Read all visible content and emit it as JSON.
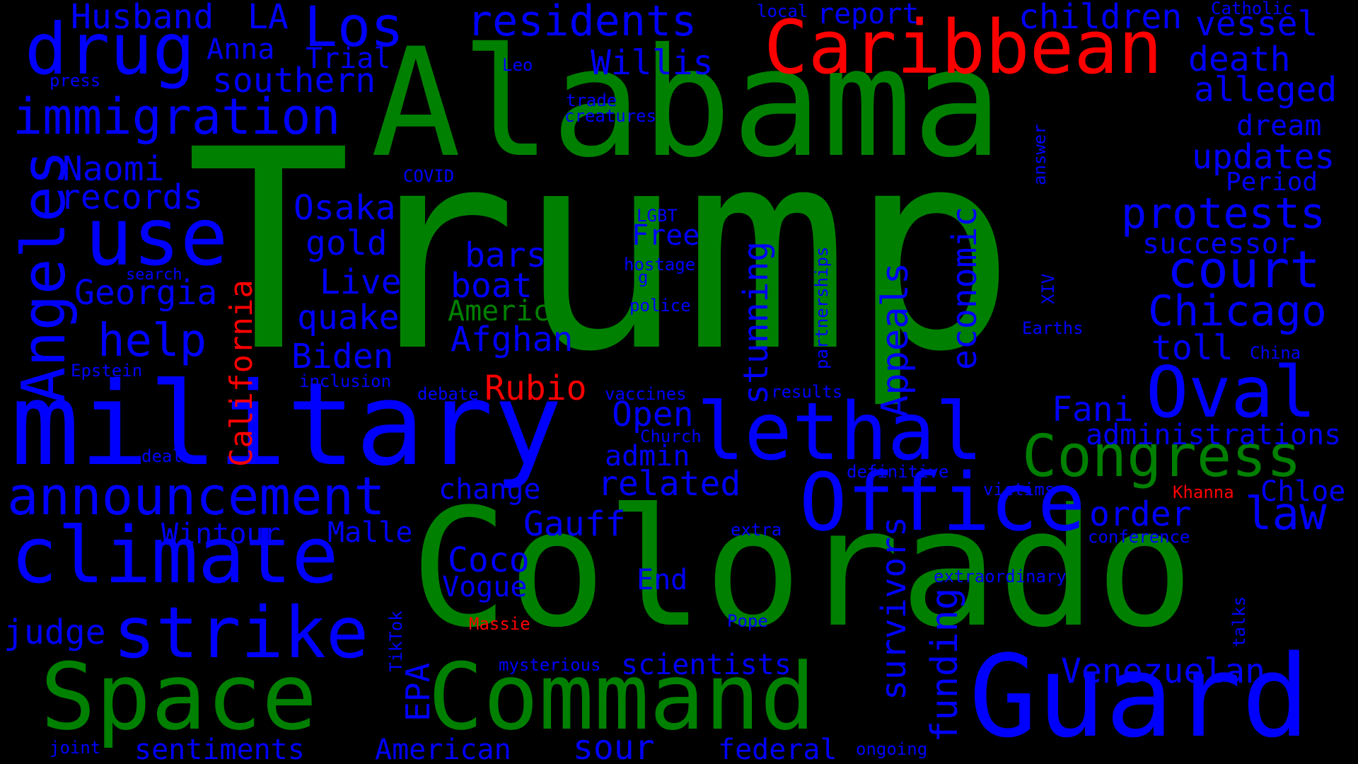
{
  "colors": {
    "background": "#000000",
    "green": "#008000",
    "blue": "#0000ff",
    "red": "#ff0000"
  },
  "words": {
    "trump": "Trump",
    "alabama": "Alabama",
    "colorado": "Colorado",
    "military": "military",
    "caribbean": "Caribbean",
    "guard": "Guard",
    "space": "Space",
    "command": "Command",
    "office": "Office",
    "lethal": "lethal",
    "climate": "climate",
    "strike": "strike",
    "use": "use",
    "drug": "drug",
    "los": "Los",
    "angeles": "Angeles",
    "oval": "Oval",
    "congress": "Congress",
    "announcement": "announcement",
    "immigration": "immigration",
    "residents": "residents",
    "husband": "Husband",
    "la": "LA",
    "anna": "Anna",
    "trial": "Trial",
    "southern": "southern",
    "press": "press",
    "naomi": "Naomi",
    "records": "records",
    "osaka": "Osaka",
    "gold": "gold",
    "georgia": "Georgia",
    "search": "search",
    "live": "Live",
    "quake": "quake",
    "help": "help",
    "biden": "Biden",
    "epstein": "Epstein",
    "inclusion": "inclusion",
    "california": "California",
    "deal": "deal",
    "wintour": "Wintour",
    "malle": "Malle",
    "judge": "judge",
    "tiktok": "TikTok",
    "epa": "EPA",
    "joint": "joint",
    "sentiments": "sentiments",
    "american": "American",
    "sour": "sour",
    "federal": "federal",
    "ongoing": "ongoing",
    "funding": "funding",
    "survivors": "survivors",
    "venezuelan": "Venezuelan",
    "scientists": "scientists",
    "mysterious": "mysterious",
    "massie": "Massie",
    "pope": "Pope",
    "end": "End",
    "vogue": "Vogue",
    "coco": "Coco",
    "gauff": "Gauff",
    "extra": "extra",
    "change": "change",
    "related": "related",
    "admin": "admin",
    "church": "Church",
    "open": "Open",
    "vaccines": "vaccines",
    "debate": "debate",
    "rubio": "Rubio",
    "afghan": "Afghan",
    "america": "America",
    "boat": "boat",
    "bars": "bars",
    "free": "Free",
    "lgbt": "LGBT",
    "hostage": "hostage",
    "g": "g",
    "police": "police",
    "covid": "COVID",
    "trade": "trade",
    "creatures": "creatures",
    "leo": "Leo",
    "local": "local",
    "report": "report",
    "willis": "Willis",
    "children": "children",
    "catholic": "Catholic",
    "vessel": "vessel",
    "death": "death",
    "alleged": "alleged",
    "dream": "dream",
    "updates": "updates",
    "period": "Period",
    "answer": "answer",
    "protests": "protests",
    "successor": "successor",
    "court": "court",
    "chicago": "Chicago",
    "xiv": "XIV",
    "earths": "Earths",
    "toll": "toll",
    "china": "China",
    "stunning": "stunning",
    "partnerships": "partnerships",
    "appeals": "Appeals",
    "economic": "economic",
    "results": "results",
    "fani": "Fani",
    "administrations": "administrations",
    "definitive": "definitive",
    "victims": "victims",
    "khanna": "Khanna",
    "chloe": "Chloe",
    "order": "order",
    "law": "law",
    "conference": "conference",
    "extraordinary": "extraordinary",
    "talks": "talks"
  }
}
